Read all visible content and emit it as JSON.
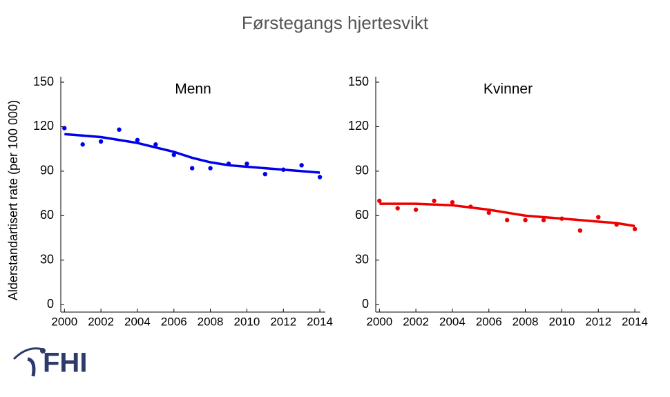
{
  "title": "Førstegangs hjertesvikt",
  "logo": "FHI",
  "chart_data": [
    {
      "type": "line",
      "subtitle": "Menn",
      "ylabel": "Alderstandartisert rate (per 100 000)",
      "x": [
        2000,
        2001,
        2002,
        2003,
        2004,
        2005,
        2006,
        2007,
        2008,
        2009,
        2010,
        2011,
        2012,
        2013,
        2014
      ],
      "series": [
        {
          "color": "#0000ee",
          "mode": "markers",
          "values": [
            119,
            108,
            110,
            118,
            111,
            108,
            101,
            92,
            92,
            95,
            95,
            88,
            91,
            94,
            86
          ]
        },
        {
          "color": "#0000ee",
          "mode": "line",
          "values": [
            115,
            114,
            113,
            111,
            109,
            106,
            103,
            99,
            96,
            94,
            93,
            92,
            91,
            90,
            89
          ]
        }
      ],
      "xlim": [
        1999.8,
        2014.3
      ],
      "xticks": [
        2000,
        2002,
        2004,
        2006,
        2008,
        2010,
        2012,
        2014
      ],
      "ylim": [
        -5,
        150
      ],
      "yticks": [
        0,
        30,
        60,
        90,
        120,
        150
      ]
    },
    {
      "type": "line",
      "subtitle": "Kvinner",
      "x": [
        2000,
        2001,
        2002,
        2003,
        2004,
        2005,
        2006,
        2007,
        2008,
        2009,
        2010,
        2011,
        2012,
        2013,
        2014
      ],
      "series": [
        {
          "color": "#ee0000",
          "mode": "markers",
          "values": [
            70,
            65,
            64,
            70,
            69,
            66,
            62,
            57,
            57,
            57,
            58,
            50,
            59,
            54,
            51
          ]
        },
        {
          "color": "#ee0000",
          "mode": "line",
          "values": [
            68,
            68,
            68,
            67.5,
            67,
            65.5,
            64,
            62,
            60,
            59,
            58,
            57,
            56,
            55,
            53
          ]
        }
      ],
      "xlim": [
        1999.8,
        2014.3
      ],
      "xticks": [
        2000,
        2002,
        2004,
        2006,
        2008,
        2010,
        2012,
        2014
      ],
      "ylim": [
        -5,
        150
      ],
      "yticks": [
        0,
        30,
        60,
        90,
        120,
        150
      ]
    }
  ]
}
